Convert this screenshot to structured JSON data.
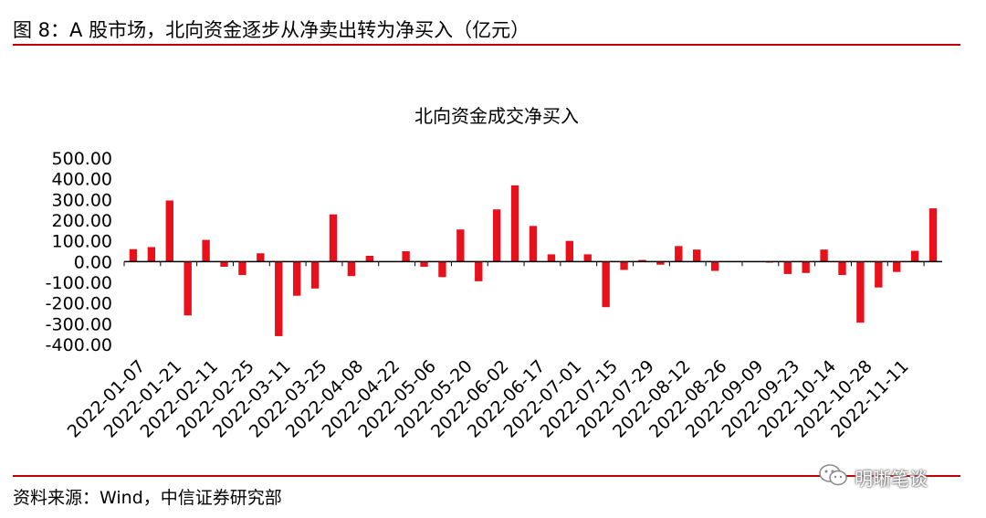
{
  "figure_title": "图 8：A 股市场，北向资金逐步从净卖出转为净买入（亿元）",
  "source_note": "资料来源：Wind，中信证券研究部",
  "watermark": {
    "text": "明晰笔谈",
    "icon": "wechat-logo-icon"
  },
  "colors": {
    "accent": "#c00000",
    "bar": "#e8101a",
    "axis": "#000000"
  },
  "chart_data": {
    "type": "bar",
    "title": "北向资金成交净买入",
    "xlabel": "",
    "ylabel": "",
    "ylim": [
      -400,
      500
    ],
    "yticks": [
      "500.00",
      "400.00",
      "300.00",
      "200.00",
      "100.00",
      "0.00",
      "-100.00",
      "-200.00",
      "-300.00",
      "-400.00"
    ],
    "ytick_values": [
      500,
      400,
      300,
      200,
      100,
      0,
      -100,
      -200,
      -300,
      -400
    ],
    "xtick_labels": [
      "2022-01-07",
      "2022-01-21",
      "2022-02-11",
      "2022-02-25",
      "2022-03-11",
      "2022-03-25",
      "2022-04-08",
      "2022-04-22",
      "2022-05-06",
      "2022-05-20",
      "2022-06-02",
      "2022-06-17",
      "2022-07-01",
      "2022-07-15",
      "2022-07-29",
      "2022-08-12",
      "2022-08-26",
      "2022-09-09",
      "2022-09-23",
      "2022-10-14",
      "2022-10-28",
      "2022-11-11"
    ],
    "grid": false,
    "legend": "none",
    "values": [
      60,
      70,
      295,
      -260,
      105,
      -25,
      -65,
      40,
      -360,
      -165,
      -130,
      228,
      -70,
      28,
      0,
      50,
      -25,
      -75,
      155,
      -95,
      252,
      368,
      172,
      35,
      100,
      35,
      -220,
      -40,
      8,
      -15,
      75,
      58,
      -45,
      0,
      0,
      -5,
      -60,
      -55,
      58,
      -65,
      -295,
      -125,
      -50,
      52,
      257
    ]
  }
}
